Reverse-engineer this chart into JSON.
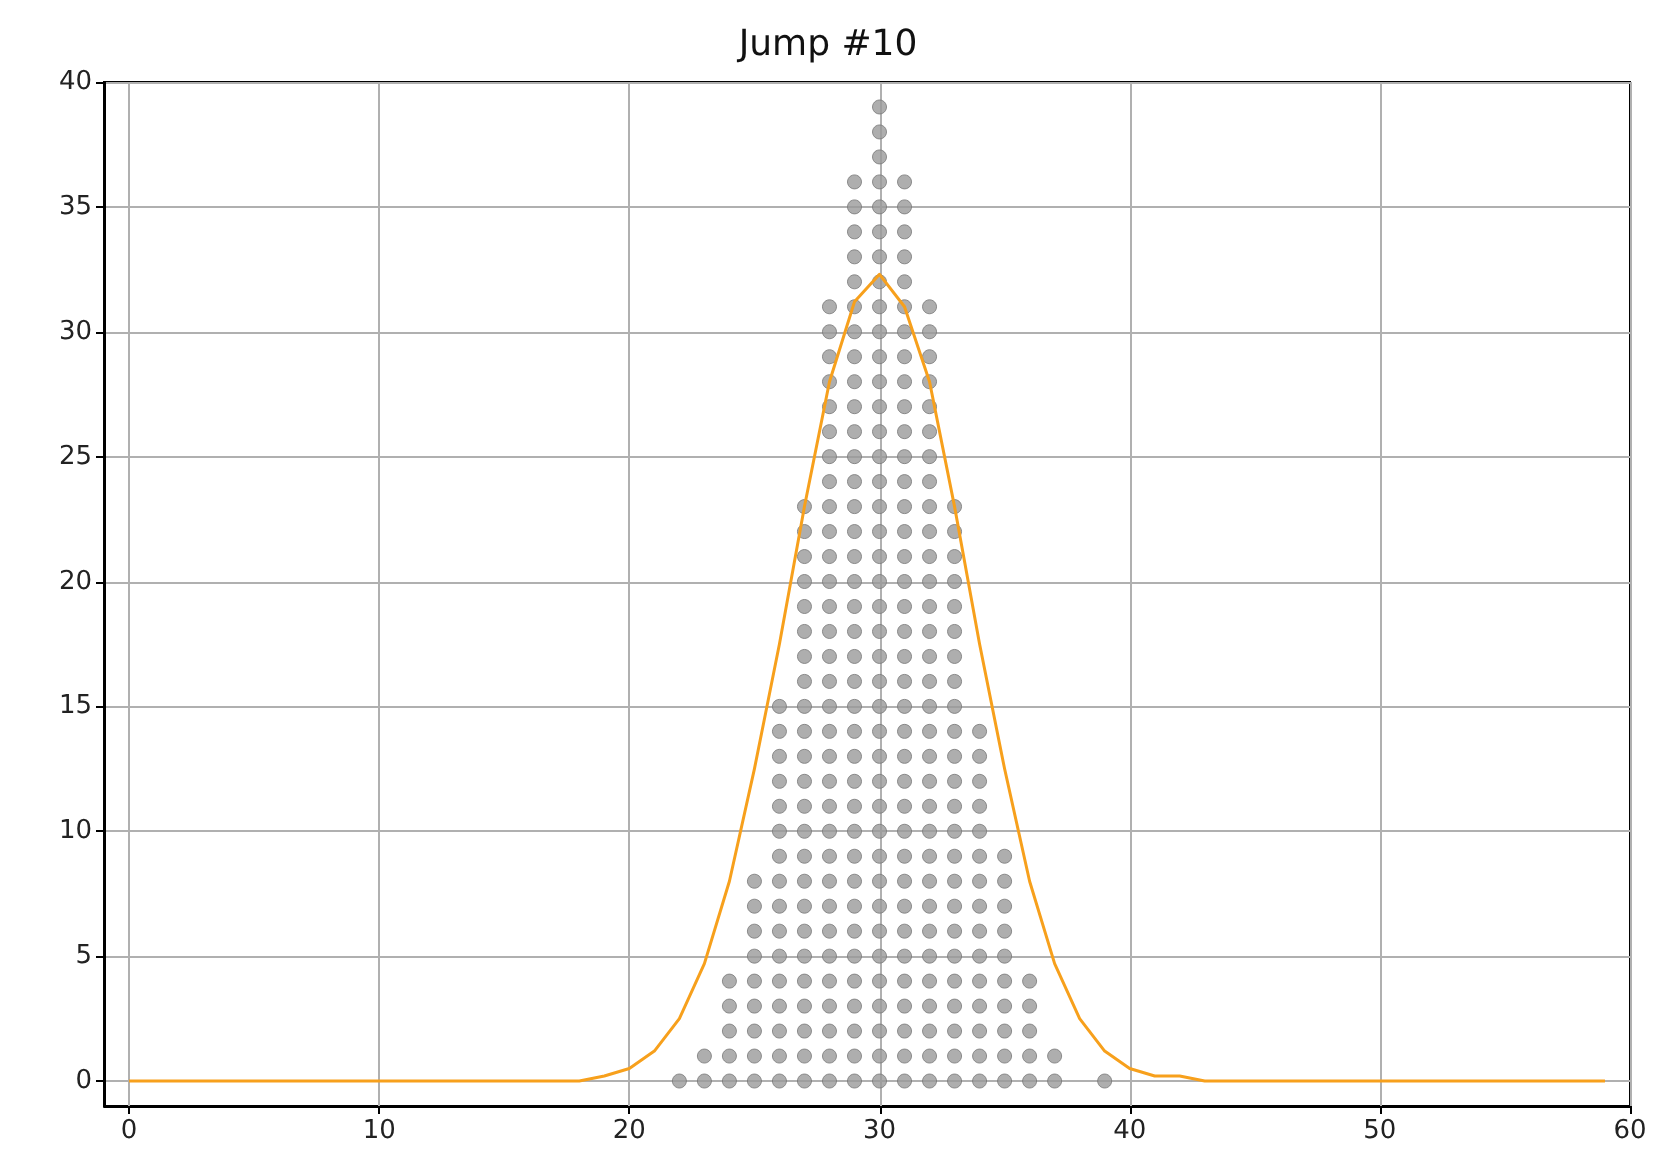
{
  "chart_data": {
    "type": "scatter",
    "title": "Jump #10",
    "xlim": [
      -1,
      60
    ],
    "ylim": [
      -1,
      40
    ],
    "xticks": [
      0,
      10,
      20,
      30,
      40,
      50,
      60
    ],
    "yticks": [
      0,
      5,
      10,
      15,
      20,
      25,
      30,
      35,
      40
    ],
    "grid": true,
    "series": [
      {
        "marker": "circle",
        "color": "#9a9a9a",
        "x": [
          22,
          23,
          23,
          24,
          24,
          24,
          24,
          24,
          25,
          25,
          25,
          25,
          25,
          25,
          25,
          25,
          25,
          26,
          26,
          26,
          26,
          26,
          26,
          26,
          26,
          26,
          26,
          26,
          26,
          26,
          26,
          26,
          26,
          27,
          27,
          27,
          27,
          27,
          27,
          27,
          27,
          27,
          27,
          27,
          27,
          27,
          27,
          27,
          27,
          27,
          27,
          27,
          27,
          27,
          27,
          27,
          27,
          28,
          28,
          28,
          28,
          28,
          28,
          28,
          28,
          28,
          28,
          28,
          28,
          28,
          28,
          28,
          28,
          28,
          28,
          28,
          28,
          28,
          28,
          28,
          28,
          28,
          28,
          28,
          28,
          28,
          28,
          28,
          28,
          29,
          29,
          29,
          29,
          29,
          29,
          29,
          29,
          29,
          29,
          29,
          29,
          29,
          29,
          29,
          29,
          29,
          29,
          29,
          29,
          29,
          29,
          29,
          29,
          29,
          29,
          29,
          29,
          29,
          29,
          29,
          29,
          29,
          29,
          29,
          29,
          29,
          30,
          30,
          30,
          30,
          30,
          30,
          30,
          30,
          30,
          30,
          30,
          30,
          30,
          30,
          30,
          30,
          30,
          30,
          30,
          30,
          30,
          30,
          30,
          30,
          30,
          30,
          30,
          30,
          30,
          30,
          30,
          30,
          30,
          30,
          30,
          30,
          30,
          30,
          30,
          30,
          31,
          31,
          31,
          31,
          31,
          31,
          31,
          31,
          31,
          31,
          31,
          31,
          31,
          31,
          31,
          31,
          31,
          31,
          31,
          31,
          31,
          31,
          31,
          31,
          31,
          31,
          31,
          31,
          31,
          31,
          31,
          31,
          31,
          31,
          31,
          31,
          31,
          32,
          32,
          32,
          32,
          32,
          32,
          32,
          32,
          32,
          32,
          32,
          32,
          32,
          32,
          32,
          32,
          32,
          32,
          32,
          32,
          32,
          32,
          32,
          32,
          32,
          32,
          32,
          32,
          32,
          32,
          32,
          32,
          33,
          33,
          33,
          33,
          33,
          33,
          33,
          33,
          33,
          33,
          33,
          33,
          33,
          33,
          33,
          33,
          33,
          33,
          33,
          33,
          33,
          33,
          33,
          33,
          34,
          34,
          34,
          34,
          34,
          34,
          34,
          34,
          34,
          34,
          34,
          34,
          34,
          34,
          34,
          35,
          35,
          35,
          35,
          35,
          35,
          35,
          35,
          35,
          35,
          36,
          36,
          36,
          36,
          36,
          37,
          37,
          39
        ],
        "values": [
          0,
          0,
          1,
          0,
          1,
          2,
          3,
          4,
          0,
          1,
          2,
          3,
          4,
          5,
          6,
          7,
          8,
          0,
          1,
          2,
          3,
          4,
          5,
          6,
          7,
          8,
          9,
          10,
          11,
          12,
          13,
          14,
          15,
          0,
          1,
          2,
          3,
          4,
          5,
          6,
          7,
          8,
          9,
          10,
          11,
          12,
          13,
          14,
          15,
          16,
          17,
          18,
          19,
          20,
          21,
          22,
          23,
          0,
          1,
          2,
          3,
          4,
          5,
          6,
          7,
          8,
          9,
          10,
          11,
          12,
          13,
          14,
          15,
          16,
          17,
          18,
          19,
          20,
          21,
          22,
          23,
          24,
          25,
          26,
          27,
          28,
          29,
          30,
          31,
          0,
          1,
          2,
          3,
          4,
          5,
          6,
          7,
          8,
          9,
          10,
          11,
          12,
          13,
          14,
          15,
          16,
          17,
          18,
          19,
          20,
          21,
          22,
          23,
          24,
          25,
          26,
          27,
          28,
          29,
          30,
          31,
          32,
          33,
          34,
          35,
          36,
          0,
          1,
          2,
          3,
          4,
          5,
          6,
          7,
          8,
          9,
          10,
          11,
          12,
          13,
          14,
          15,
          16,
          17,
          18,
          19,
          20,
          21,
          22,
          23,
          24,
          25,
          26,
          27,
          28,
          29,
          30,
          31,
          32,
          33,
          34,
          35,
          36,
          37,
          38,
          39,
          0,
          1,
          2,
          3,
          4,
          5,
          6,
          7,
          8,
          9,
          10,
          11,
          12,
          13,
          14,
          15,
          16,
          17,
          18,
          19,
          20,
          21,
          22,
          23,
          24,
          25,
          26,
          27,
          28,
          29,
          30,
          31,
          32,
          33,
          34,
          35,
          36,
          0,
          1,
          2,
          3,
          4,
          5,
          6,
          7,
          8,
          9,
          10,
          11,
          12,
          13,
          14,
          15,
          16,
          17,
          18,
          19,
          20,
          21,
          22,
          23,
          24,
          25,
          26,
          27,
          28,
          29,
          30,
          31,
          0,
          1,
          2,
          3,
          4,
          5,
          6,
          7,
          8,
          9,
          10,
          11,
          12,
          13,
          14,
          15,
          16,
          17,
          18,
          19,
          20,
          21,
          22,
          23,
          0,
          1,
          2,
          3,
          4,
          5,
          6,
          7,
          8,
          9,
          10,
          11,
          12,
          13,
          14,
          0,
          1,
          2,
          3,
          4,
          5,
          6,
          7,
          8,
          9,
          0,
          1,
          2,
          3,
          4,
          0,
          1,
          0
        ]
      },
      {
        "type": "line",
        "marker": "none",
        "color": "#f7a01c",
        "x": [
          0,
          1,
          2,
          3,
          4,
          5,
          6,
          7,
          8,
          9,
          10,
          11,
          12,
          13,
          14,
          15,
          16,
          17,
          18,
          19,
          20,
          21,
          22,
          23,
          24,
          25,
          26,
          27,
          28,
          29,
          30,
          31,
          32,
          33,
          34,
          35,
          36,
          37,
          38,
          39,
          40,
          41,
          42,
          43,
          44,
          45,
          46,
          47,
          48,
          49,
          50,
          51,
          52,
          53,
          54,
          55,
          56,
          57,
          58,
          59
        ],
        "values": [
          0,
          0,
          0,
          0,
          0,
          0,
          0,
          0,
          0,
          0,
          0,
          0,
          0,
          0,
          0,
          0,
          0,
          0,
          0,
          0.2,
          0.5,
          1.2,
          2.5,
          4.7,
          8,
          12.5,
          17.5,
          23,
          28,
          31.2,
          32.3,
          31,
          28,
          23,
          17.5,
          12.5,
          8,
          4.7,
          2.5,
          1.2,
          0.5,
          0.2,
          0.2,
          0,
          0,
          0,
          0,
          0,
          0,
          0,
          0,
          0,
          0,
          0,
          0,
          0,
          0,
          0,
          0,
          0
        ]
      }
    ]
  }
}
